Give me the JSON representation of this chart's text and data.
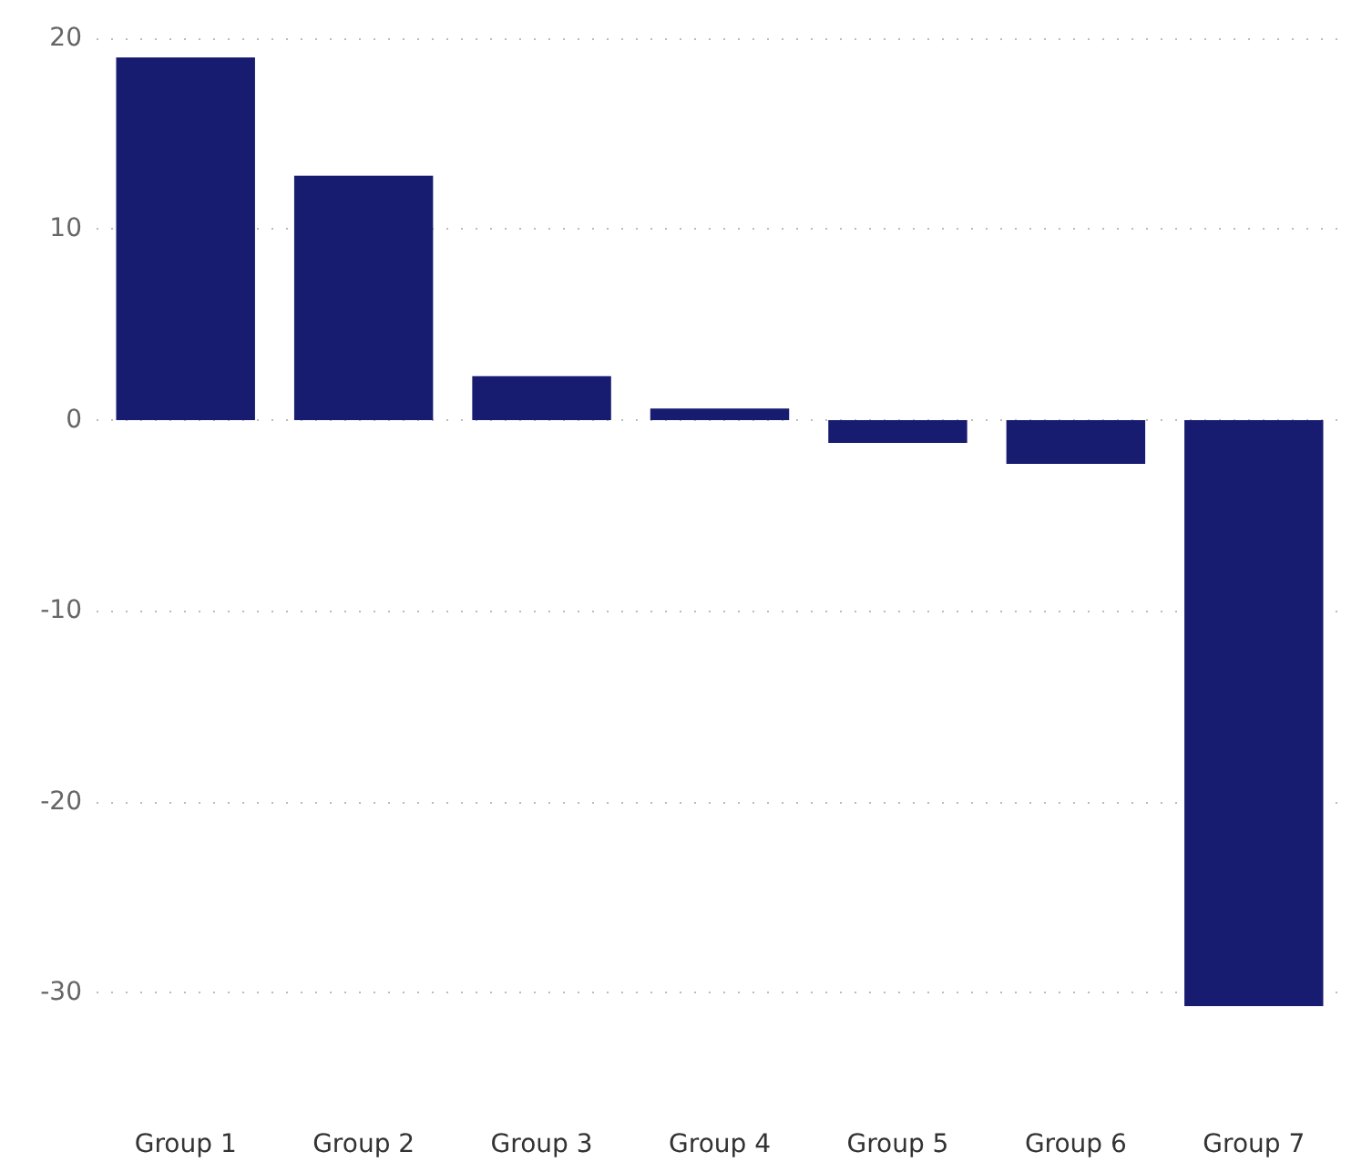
{
  "chart_data": {
    "type": "bar",
    "categories": [
      "Group 1",
      "Group 2",
      "Group 3",
      "Group 4",
      "Group 5",
      "Group 6",
      "Group 7"
    ],
    "values": [
      19.0,
      12.8,
      2.3,
      0.6,
      -1.2,
      -2.3,
      -30.7
    ],
    "color": "#181c70",
    "ylim": [
      -30.7,
      20
    ],
    "yticks": [
      -30,
      -20,
      -10,
      0,
      10,
      20
    ],
    "grid": "y"
  }
}
